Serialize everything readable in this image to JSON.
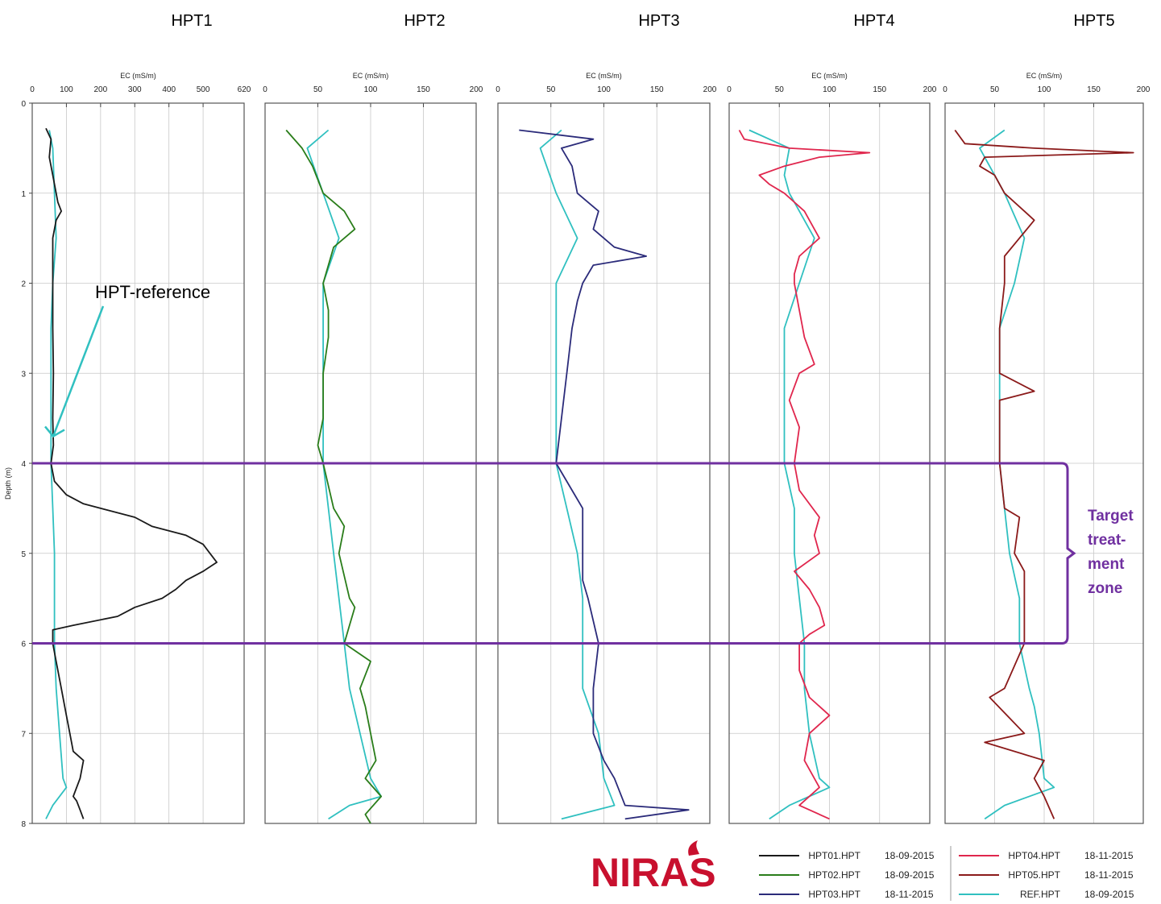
{
  "chart_data": {
    "type": "line",
    "y_label": "Depth (m)",
    "y_ticks": [
      0,
      1,
      2,
      3,
      4,
      5,
      6,
      7,
      8
    ],
    "ylim": [
      0,
      8
    ],
    "grid": true,
    "panels": [
      {
        "title": "HPT1",
        "xlabel": "EC (mS/m)",
        "xlim": [
          0,
          620
        ],
        "xticks": [
          0,
          100,
          200,
          300,
          400,
          500,
          620
        ],
        "series": [
          {
            "name": "HPT01.HPT",
            "color": "#1a1a1a",
            "depth": [
              0.28,
              0.4,
              0.6,
              0.8,
              1.0,
              1.1,
              1.2,
              1.3,
              1.5,
              2.0,
              2.5,
              3.0,
              3.5,
              3.8,
              4.0,
              4.2,
              4.35,
              4.45,
              4.6,
              4.7,
              4.8,
              4.9,
              5.0,
              5.1,
              5.2,
              5.3,
              5.4,
              5.5,
              5.6,
              5.7,
              5.8,
              5.85,
              6.0,
              6.2,
              6.5,
              6.8,
              7.0,
              7.2,
              7.3,
              7.5,
              7.7,
              7.75,
              7.85,
              7.95
            ],
            "values": [
              40,
              55,
              50,
              60,
              70,
              75,
              85,
              70,
              60,
              60,
              60,
              62,
              60,
              62,
              55,
              65,
              100,
              150,
              300,
              350,
              450,
              500,
              520,
              540,
              500,
              450,
              420,
              380,
              300,
              250,
              120,
              60,
              60,
              70,
              85,
              100,
              110,
              120,
              150,
              140,
              120,
              130,
              140,
              150
            ]
          },
          {
            "name": "REF.HPT",
            "color": "#30c0c0",
            "depth": [
              0.3,
              0.5,
              1.0,
              1.5,
              2.0,
              2.5,
              3.0,
              3.5,
              4.0,
              4.5,
              5.0,
              5.5,
              6.0,
              6.5,
              7.0,
              7.5,
              7.6,
              7.8,
              7.95
            ],
            "values": [
              50,
              60,
              65,
              70,
              60,
              55,
              55,
              55,
              55,
              60,
              65,
              65,
              65,
              70,
              80,
              90,
              100,
              60,
              40
            ]
          }
        ]
      },
      {
        "title": "HPT2",
        "xlabel": "EC (mS/m)",
        "xlim": [
          0,
          200
        ],
        "xticks": [
          0,
          50,
          100,
          150,
          200
        ],
        "series": [
          {
            "name": "HPT02.HPT",
            "color": "#2a7d1a",
            "depth": [
              0.3,
              0.5,
              0.7,
              1.0,
              1.2,
              1.4,
              1.6,
              1.8,
              2.0,
              2.3,
              2.6,
              3.0,
              3.5,
              3.8,
              4.0,
              4.5,
              4.7,
              5.0,
              5.5,
              5.6,
              5.8,
              6.0,
              6.2,
              6.5,
              6.7,
              7.0,
              7.3,
              7.5,
              7.7,
              7.9,
              8.0
            ],
            "values": [
              20,
              35,
              45,
              55,
              75,
              85,
              65,
              60,
              55,
              60,
              60,
              55,
              55,
              50,
              55,
              65,
              75,
              70,
              80,
              85,
              80,
              75,
              100,
              90,
              95,
              100,
              105,
              95,
              110,
              95,
              100
            ]
          },
          {
            "name": "REF.HPT",
            "color": "#30c0c0",
            "depth": [
              0.3,
              0.5,
              1.0,
              1.5,
              2.0,
              2.5,
              3.0,
              3.5,
              4.0,
              4.5,
              5.0,
              5.5,
              6.0,
              6.5,
              7.0,
              7.5,
              7.7,
              7.8,
              7.95
            ],
            "values": [
              60,
              40,
              55,
              70,
              55,
              55,
              55,
              55,
              55,
              60,
              65,
              70,
              75,
              80,
              90,
              100,
              110,
              80,
              60
            ]
          }
        ]
      },
      {
        "title": "HPT3",
        "xlabel": "EC (mS/m)",
        "xlim": [
          0,
          200
        ],
        "xticks": [
          0,
          50,
          100,
          150,
          200
        ],
        "series": [
          {
            "name": "HPT03.HPT",
            "color": "#2b2b7a",
            "depth": [
              0.3,
              0.4,
              0.5,
              0.7,
              1.0,
              1.2,
              1.4,
              1.6,
              1.7,
              1.8,
              2.0,
              2.2,
              2.5,
              3.0,
              3.5,
              4.0,
              4.3,
              4.5,
              5.0,
              5.3,
              5.5,
              6.0,
              6.5,
              7.0,
              7.3,
              7.5,
              7.8,
              7.85,
              7.95
            ],
            "values": [
              20,
              90,
              60,
              70,
              75,
              95,
              90,
              110,
              140,
              90,
              80,
              75,
              70,
              65,
              60,
              55,
              70,
              80,
              80,
              80,
              85,
              95,
              90,
              90,
              100,
              110,
              120,
              180,
              120
            ]
          },
          {
            "name": "REF.HPT",
            "color": "#30c0c0",
            "depth": [
              0.3,
              0.5,
              1.0,
              1.5,
              2.0,
              2.5,
              3.0,
              3.5,
              4.0,
              4.5,
              5.0,
              5.5,
              6.0,
              6.5,
              7.0,
              7.5,
              7.8,
              7.95
            ],
            "values": [
              60,
              40,
              55,
              75,
              55,
              55,
              55,
              55,
              55,
              65,
              75,
              80,
              80,
              80,
              95,
              100,
              110,
              60
            ]
          }
        ]
      },
      {
        "title": "HPT4",
        "xlabel": "EC (mS/m)",
        "xlim": [
          0,
          200
        ],
        "xticks": [
          0,
          50,
          100,
          150,
          200
        ],
        "series": [
          {
            "name": "HPT04.HPT",
            "color": "#e0264d",
            "depth": [
              0.3,
              0.4,
              0.5,
              0.55,
              0.6,
              0.7,
              0.8,
              0.9,
              1.0,
              1.2,
              1.4,
              1.5,
              1.7,
              1.9,
              2.0,
              2.3,
              2.6,
              2.9,
              3.0,
              3.3,
              3.6,
              4.0,
              4.3,
              4.6,
              4.8,
              5.0,
              5.2,
              5.4,
              5.6,
              5.8,
              5.9,
              6.0,
              6.3,
              6.6,
              6.8,
              7.0,
              7.3,
              7.6,
              7.8,
              7.95
            ],
            "values": [
              10,
              15,
              60,
              140,
              90,
              55,
              30,
              40,
              55,
              75,
              85,
              90,
              70,
              65,
              65,
              70,
              75,
              85,
              70,
              60,
              70,
              65,
              70,
              90,
              85,
              90,
              65,
              80,
              90,
              95,
              80,
              70,
              70,
              80,
              100,
              80,
              75,
              90,
              70,
              100
            ]
          },
          {
            "name": "REF.HPT",
            "color": "#30c0c0",
            "depth": [
              0.3,
              0.5,
              0.8,
              1.0,
              1.5,
              2.0,
              2.5,
              3.0,
              3.5,
              4.0,
              4.5,
              5.0,
              5.5,
              6.0,
              6.5,
              7.0,
              7.5,
              7.6,
              7.8,
              7.95
            ],
            "values": [
              20,
              60,
              55,
              60,
              85,
              70,
              55,
              55,
              55,
              55,
              65,
              65,
              70,
              75,
              75,
              80,
              90,
              100,
              60,
              40
            ]
          }
        ]
      },
      {
        "title": "HPT5",
        "xlabel": "EC (mS/m)",
        "xlim": [
          0,
          200
        ],
        "xticks": [
          0,
          50,
          100,
          150,
          200
        ],
        "series": [
          {
            "name": "HPT05.HPT",
            "color": "#8b1a1a",
            "depth": [
              0.3,
              0.45,
              0.5,
              0.55,
              0.6,
              0.7,
              0.8,
              1.0,
              1.2,
              1.3,
              1.5,
              1.7,
              2.0,
              2.5,
              3.0,
              3.2,
              3.3,
              3.5,
              4.0,
              4.5,
              4.6,
              5.0,
              5.2,
              5.5,
              6.0,
              6.5,
              6.6,
              7.0,
              7.1,
              7.3,
              7.5,
              7.7,
              7.95
            ],
            "values": [
              10,
              20,
              90,
              190,
              40,
              35,
              50,
              60,
              80,
              90,
              75,
              60,
              60,
              55,
              55,
              90,
              55,
              55,
              55,
              60,
              75,
              70,
              80,
              80,
              80,
              60,
              45,
              80,
              40,
              100,
              90,
              100,
              110
            ]
          },
          {
            "name": "REF.HPT",
            "color": "#30c0c0",
            "depth": [
              0.3,
              0.5,
              0.8,
              1.0,
              1.5,
              2.0,
              2.5,
              3.0,
              3.5,
              4.0,
              4.5,
              5.0,
              5.5,
              6.0,
              6.5,
              6.7,
              7.0,
              7.5,
              7.6,
              7.8,
              7.95
            ],
            "values": [
              60,
              35,
              50,
              60,
              80,
              70,
              55,
              55,
              55,
              55,
              60,
              65,
              75,
              75,
              85,
              90,
              95,
              100,
              110,
              60,
              40
            ]
          }
        ]
      }
    ],
    "annotations": {
      "callout": "HPT-reference",
      "callout_depth": 3.7,
      "zone_top": 4.0,
      "zone_bottom": 6.0,
      "zone_label_lines": [
        "Target",
        "treat-",
        "ment",
        "zone"
      ],
      "zone_color": "#7030a0"
    },
    "legend": {
      "position": "bottom-right",
      "entries": [
        {
          "name": "HPT01.HPT",
          "date": "18-09-2015",
          "color": "#1a1a1a"
        },
        {
          "name": "HPT02.HPT",
          "date": "18-09-2015",
          "color": "#2a7d1a"
        },
        {
          "name": "HPT03.HPT",
          "date": "18-11-2015",
          "color": "#2b2b7a"
        },
        {
          "name": "HPT04.HPT",
          "date": "18-11-2015",
          "color": "#e0264d"
        },
        {
          "name": "HPT05.HPT",
          "date": "18-11-2015",
          "color": "#8b1a1a"
        },
        {
          "name": "REF.HPT",
          "date": "18-09-2015",
          "color": "#30c0c0"
        }
      ]
    }
  },
  "logo": {
    "text": "NIRAS",
    "color": "#c8102e"
  }
}
